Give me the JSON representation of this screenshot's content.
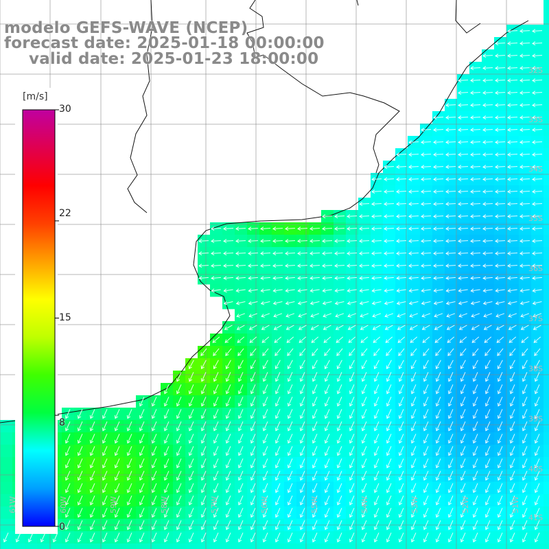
{
  "title": {
    "model": "modelo GEFS-WAVE (NCEP)",
    "forecast": "forecast date: 2025-01-18 00:00:00",
    "valid": "valid date: 2025-01-23 18:00:00"
  },
  "colorbar": {
    "unit": "[m/s]",
    "min": 0,
    "max": 30,
    "ticks": [
      "30",
      "22",
      "15",
      "8",
      "0"
    ],
    "tick_values": [
      30,
      22,
      15,
      8,
      0
    ],
    "gradient": [
      "#0000ff",
      "#00a0ff",
      "#00ffff",
      "#00ff40",
      "#40ff00",
      "#c0ff00",
      "#ffff00",
      "#ffa000",
      "#ff4000",
      "#ff0000",
      "#e00050",
      "#c000a0"
    ]
  },
  "map_labels": {
    "latitudes": [
      "32S",
      "33S",
      "34S",
      "35S",
      "36S",
      "37S",
      "38S",
      "39S",
      "40S",
      "41S"
    ],
    "longitudes": [
      "61W",
      "60W",
      "59W",
      "58W",
      "57W",
      "56W",
      "55W",
      "54W",
      "53W",
      "52W",
      "51W"
    ]
  },
  "chart_data": {
    "type": "heatmap",
    "title": "",
    "variable": "wind speed",
    "units": "m/s",
    "colorscale_range": [
      0,
      30
    ],
    "legend_position": "left",
    "grid": true,
    "vector_field": "wind direction arrows",
    "region": "South Atlantic off Uruguay / southern Brazil and Río de la Plata",
    "dominant_direction_north": "from east (arrows pointing west)",
    "dominant_direction_south": "from northeast (arrows pointing southwest)"
  }
}
